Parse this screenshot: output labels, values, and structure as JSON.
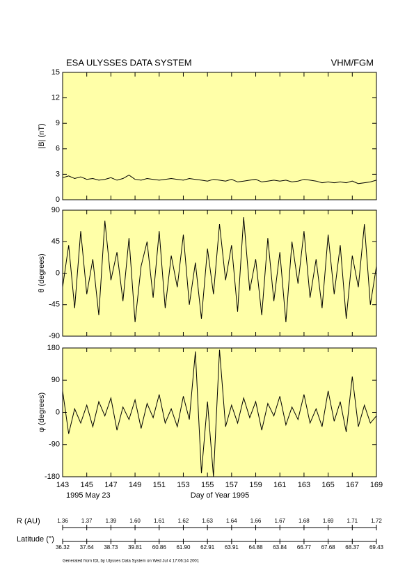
{
  "header": {
    "title": "ESA ULYSSES DATA SYSTEM",
    "instrument": "VHM/FGM"
  },
  "chart_data": [
    {
      "type": "line",
      "ylabel": "|B| (nT)",
      "color": "#000000",
      "background": "#ffff a0",
      "xlim": [
        143,
        169
      ],
      "ylim": [
        0,
        15
      ],
      "yticks": [
        0,
        3,
        6,
        9,
        12,
        15
      ],
      "x": [
        143,
        143.5,
        144,
        144.5,
        145,
        145.5,
        146,
        146.5,
        147,
        147.5,
        148,
        148.5,
        149,
        149.5,
        150,
        150.5,
        151,
        151.5,
        152,
        152.5,
        153,
        153.5,
        154,
        154.5,
        155,
        155.5,
        156,
        156.5,
        157,
        157.5,
        158,
        158.5,
        159,
        159.5,
        160,
        160.5,
        161,
        161.5,
        162,
        162.5,
        163,
        163.5,
        164,
        164.5,
        165,
        165.5,
        166,
        166.5,
        167,
        167.5,
        168,
        168.5,
        169
      ],
      "values": [
        2.6,
        2.8,
        2.5,
        2.7,
        2.4,
        2.5,
        2.3,
        2.4,
        2.6,
        2.3,
        2.5,
        2.9,
        2.4,
        2.3,
        2.5,
        2.4,
        2.3,
        2.4,
        2.5,
        2.4,
        2.3,
        2.5,
        2.4,
        2.3,
        2.2,
        2.4,
        2.3,
        2.2,
        2.4,
        2.1,
        2.2,
        2.3,
        2.4,
        2.1,
        2.2,
        2.3,
        2.2,
        2.3,
        2.1,
        2.2,
        2.4,
        2.3,
        2.2,
        2.0,
        2.1,
        2.0,
        2.1,
        2.0,
        2.2,
        1.9,
        2.0,
        2.1,
        2.3
      ]
    },
    {
      "type": "line",
      "ylabel": "θ (degrees)",
      "color": "#000000",
      "xlim": [
        143,
        169
      ],
      "ylim": [
        -90,
        90
      ],
      "yticks": [
        -90,
        -45,
        0,
        45,
        90
      ],
      "x": [
        143,
        143.5,
        144,
        144.5,
        145,
        145.5,
        146,
        146.5,
        147,
        147.5,
        148,
        148.5,
        149,
        149.5,
        150,
        150.5,
        151,
        151.5,
        152,
        152.5,
        153,
        153.5,
        154,
        154.5,
        155,
        155.5,
        156,
        156.5,
        157,
        157.5,
        158,
        158.5,
        159,
        159.5,
        160,
        160.5,
        161,
        161.5,
        162,
        162.5,
        163,
        163.5,
        164,
        164.5,
        165,
        165.5,
        166,
        166.5,
        167,
        167.5,
        168,
        168.5,
        169
      ],
      "values": [
        -20,
        40,
        -50,
        60,
        -30,
        20,
        -60,
        75,
        -10,
        30,
        -40,
        50,
        -70,
        10,
        45,
        -35,
        60,
        -50,
        25,
        -20,
        55,
        -45,
        15,
        -65,
        35,
        -30,
        70,
        -10,
        40,
        -55,
        80,
        -25,
        20,
        -60,
        50,
        -40,
        30,
        -70,
        45,
        -15,
        60,
        -35,
        20,
        -50,
        55,
        -30,
        40,
        -65,
        25,
        -20,
        70,
        -45,
        10
      ]
    },
    {
      "type": "line",
      "ylabel": "φ (degrees)",
      "color": "#000000",
      "xlabel": "Day of Year 1995",
      "start_date": "1995 May 23",
      "xlim": [
        143,
        169
      ],
      "ylim": [
        -180,
        180
      ],
      "yticks": [
        -180,
        -90,
        0,
        90,
        180
      ],
      "xticks": [
        143,
        145,
        147,
        149,
        151,
        153,
        155,
        157,
        159,
        161,
        163,
        165,
        167,
        169
      ],
      "x": [
        143,
        143.5,
        144,
        144.5,
        145,
        145.5,
        146,
        146.5,
        147,
        147.5,
        148,
        148.5,
        149,
        149.5,
        150,
        150.5,
        151,
        151.5,
        152,
        152.5,
        153,
        153.5,
        154,
        154.5,
        155,
        155.5,
        156,
        156.5,
        157,
        157.5,
        158,
        158.5,
        159,
        159.5,
        160,
        160.5,
        161,
        161.5,
        162,
        162.5,
        163,
        163.5,
        164,
        164.5,
        165,
        165.5,
        166,
        166.5,
        167,
        167.5,
        168,
        168.5,
        169
      ],
      "values": [
        60,
        -60,
        10,
        -30,
        20,
        -40,
        30,
        -10,
        40,
        -50,
        15,
        -20,
        35,
        -45,
        25,
        -15,
        50,
        -30,
        10,
        -40,
        45,
        -20,
        170,
        -170,
        30,
        -180,
        175,
        -40,
        20,
        -30,
        40,
        -15,
        30,
        -50,
        25,
        -10,
        45,
        -35,
        15,
        -20,
        50,
        -30,
        10,
        -40,
        60,
        -25,
        30,
        -55,
        100,
        -40,
        20,
        -30,
        -10
      ]
    }
  ],
  "orbit": {
    "r_label": "R (AU)",
    "r_values": [
      "1.36",
      "1.37",
      "1.39",
      "1.60",
      "1.61",
      "1.62",
      "1.63",
      "1.64",
      "1.66",
      "1.67",
      "1.68",
      "1.69",
      "1.71",
      "1.72"
    ],
    "lat_label": "Latitude (°)",
    "lat_values": [
      "36.32",
      "37.64",
      "38.73",
      "39.81",
      "60.86",
      "61.90",
      "62.91",
      "63.91",
      "64.88",
      "63.84",
      "66.77",
      "67.68",
      "68.37",
      "69.43"
    ]
  },
  "footer": "Generated from IDL by Ulysses Data System on Wed Jul 4 17:06:14 2001"
}
